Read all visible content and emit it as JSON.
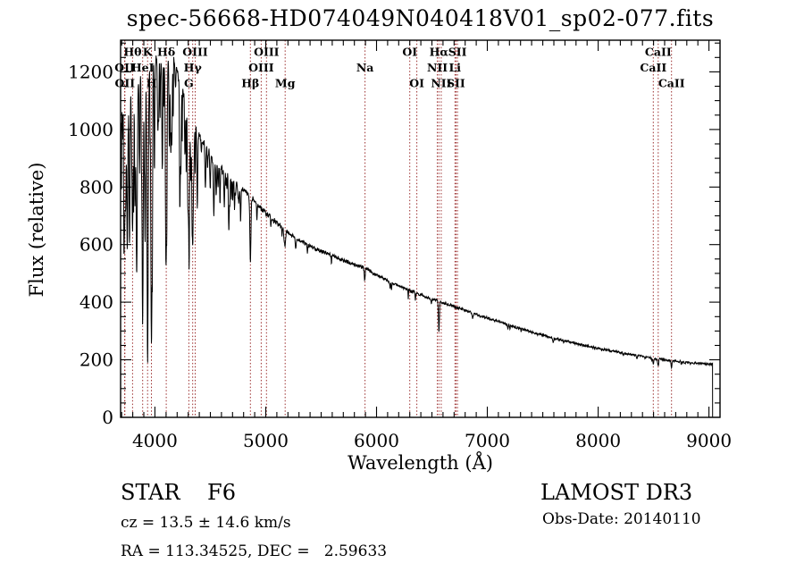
{
  "title": "spec-56668-HD074049N040418V01_sp02-077.fits",
  "annotations": {
    "class_type": "STAR    F6",
    "cz": "cz = 13.5 ± 14.6 km/s",
    "ra_dec": "RA = 113.34525, DEC =   2.59633",
    "survey": "LAMOST DR3",
    "obs_date": "Obs-Date: 20140110"
  },
  "chart_data": {
    "type": "line",
    "title": "spec-56668-HD074049N040418V01_sp02-077.fits",
    "xlabel": "Wavelength (Å)",
    "ylabel": "Flux (relative)",
    "xlim": [
      3690,
      9100
    ],
    "ylim": [
      0,
      1310
    ],
    "x_ticks": [
      4000,
      5000,
      6000,
      7000,
      8000,
      9000
    ],
    "x_minor_step": 100,
    "y_ticks": [
      0,
      200,
      400,
      600,
      800,
      1000,
      1200
    ],
    "y_minor_step": 50,
    "grid": false,
    "line_color": "#000000",
    "feature_line_color": "#9b2d2d",
    "feature_lines": [
      {
        "label": "OII",
        "wavelength": 3726.0,
        "row": 2
      },
      {
        "label": "OII",
        "wavelength": 3728.8,
        "row": 3
      },
      {
        "label": "Hθ",
        "wavelength": 3798.0,
        "row": 1
      },
      {
        "label": "HeI",
        "wavelength": 3889.0,
        "row": 2
      },
      {
        "label": "K",
        "wavelength": 3933.7,
        "row": 1
      },
      {
        "label": "H",
        "wavelength": 3968.5,
        "row": 3
      },
      {
        "label": "Hδ",
        "wavelength": 4101.7,
        "row": 1
      },
      {
        "label": "G",
        "wavelength": 4305.6,
        "row": 3
      },
      {
        "label": "Hγ",
        "wavelength": 4340.5,
        "row": 2
      },
      {
        "label": "OIII",
        "wavelength": 4363.2,
        "row": 1
      },
      {
        "label": "Hβ",
        "wavelength": 4861.3,
        "row": 3
      },
      {
        "label": "OIII",
        "wavelength": 4958.9,
        "row": 2
      },
      {
        "label": "OIII",
        "wavelength": 5006.8,
        "row": 1
      },
      {
        "label": "Mg",
        "wavelength": 5175.4,
        "row": 3
      },
      {
        "label": "Na",
        "wavelength": 5895.9,
        "row": 2
      },
      {
        "label": "OI",
        "wavelength": 6300.2,
        "row": 1
      },
      {
        "label": "OI",
        "wavelength": 6363.9,
        "row": 3
      },
      {
        "label": "NII",
        "wavelength": 6548.0,
        "row": 2
      },
      {
        "label": "Hα",
        "wavelength": 6562.8,
        "row": 1
      },
      {
        "label": "NII",
        "wavelength": 6583.4,
        "row": 3
      },
      {
        "label": "Li",
        "wavelength": 6707.8,
        "row": 2
      },
      {
        "label": "SII",
        "wavelength": 6716.4,
        "row": 3
      },
      {
        "label": "SII",
        "wavelength": 6730.8,
        "row": 1
      },
      {
        "label": "CaII",
        "wavelength": 8498.0,
        "row": 2
      },
      {
        "label": "CaII",
        "wavelength": 8542.1,
        "row": 1
      },
      {
        "label": "CaII",
        "wavelength": 8662.1,
        "row": 3
      }
    ],
    "continuum": [
      [
        3690,
        820
      ],
      [
        3700,
        1020
      ],
      [
        3730,
        1130
      ],
      [
        3780,
        1170
      ],
      [
        3850,
        1205
      ],
      [
        3920,
        1230
      ],
      [
        4000,
        1242
      ],
      [
        4090,
        1250
      ],
      [
        4170,
        1242
      ],
      [
        4240,
        1150
      ],
      [
        4310,
        1060
      ],
      [
        4390,
        990
      ],
      [
        4470,
        935
      ],
      [
        4560,
        885
      ],
      [
        4650,
        845
      ],
      [
        4750,
        805
      ],
      [
        4861,
        768
      ],
      [
        4960,
        725
      ],
      [
        5060,
        688
      ],
      [
        5175,
        650
      ],
      [
        5280,
        620
      ],
      [
        5400,
        595
      ],
      [
        5550,
        570
      ],
      [
        5700,
        545
      ],
      [
        5896,
        518
      ],
      [
        6000,
        495
      ],
      [
        6150,
        465
      ],
      [
        6300,
        440
      ],
      [
        6450,
        418
      ],
      [
        6563,
        403
      ],
      [
        6700,
        385
      ],
      [
        6850,
        365
      ],
      [
        7000,
        345
      ],
      [
        7150,
        326
      ],
      [
        7300,
        308
      ],
      [
        7450,
        291
      ],
      [
        7600,
        275
      ],
      [
        7750,
        261
      ],
      [
        7900,
        248
      ],
      [
        8050,
        236
      ],
      [
        8200,
        225
      ],
      [
        8350,
        215
      ],
      [
        8500,
        205
      ],
      [
        8650,
        197
      ],
      [
        8800,
        191
      ],
      [
        8950,
        187
      ],
      [
        9035,
        184
      ]
    ],
    "absorption_lines": [
      [
        3726,
        4,
        0.28
      ],
      [
        3737,
        4,
        0.3
      ],
      [
        3750,
        5,
        0.36
      ],
      [
        3771,
        5,
        0.38
      ],
      [
        3798,
        6,
        0.44
      ],
      [
        3820,
        4,
        0.25
      ],
      [
        3835,
        6,
        0.5
      ],
      [
        3860,
        4,
        0.25
      ],
      [
        3889,
        6,
        0.55
      ],
      [
        3910,
        4,
        0.28
      ],
      [
        3933.7,
        6,
        0.73
      ],
      [
        3968.5,
        6,
        0.7
      ],
      [
        4026,
        4,
        0.2
      ],
      [
        4101.7,
        7,
        0.46
      ],
      [
        4144,
        4,
        0.2
      ],
      [
        4226,
        4,
        0.22
      ],
      [
        4271,
        4,
        0.18
      ],
      [
        4305,
        7,
        0.38
      ],
      [
        4340.5,
        6,
        0.42
      ],
      [
        4383,
        4,
        0.22
      ],
      [
        4455,
        4,
        0.13
      ],
      [
        4531,
        4,
        0.12
      ],
      [
        4668,
        4,
        0.11
      ],
      [
        4861.3,
        5,
        0.29
      ],
      [
        4920,
        3,
        0.07
      ],
      [
        5172,
        6,
        0.09
      ],
      [
        5270,
        4,
        0.06
      ],
      [
        5893,
        4,
        0.08
      ],
      [
        6122,
        3,
        0.04
      ],
      [
        6494,
        3,
        0.04
      ],
      [
        6562.8,
        4,
        0.26
      ],
      [
        6867,
        5,
        0.06
      ],
      [
        7186,
        4,
        0.04
      ],
      [
        7594,
        5,
        0.05
      ],
      [
        8230,
        4,
        0.04
      ],
      [
        8350,
        4,
        0.04
      ],
      [
        8498,
        4,
        0.1
      ],
      [
        8542.1,
        4,
        0.13
      ],
      [
        8662.1,
        4,
        0.12
      ],
      [
        8750,
        3,
        0.04
      ]
    ],
    "noise_profile": [
      [
        3700,
        230
      ],
      [
        3720,
        120
      ],
      [
        3780,
        45
      ],
      [
        4100,
        26
      ],
      [
        4400,
        20
      ],
      [
        4700,
        14
      ],
      [
        5200,
        9
      ],
      [
        6000,
        6.5
      ],
      [
        7000,
        5
      ],
      [
        8000,
        4.5
      ],
      [
        99999,
        4
      ]
    ],
    "noise_seed": 42,
    "spectrum_end_wavelength": 9033
  }
}
